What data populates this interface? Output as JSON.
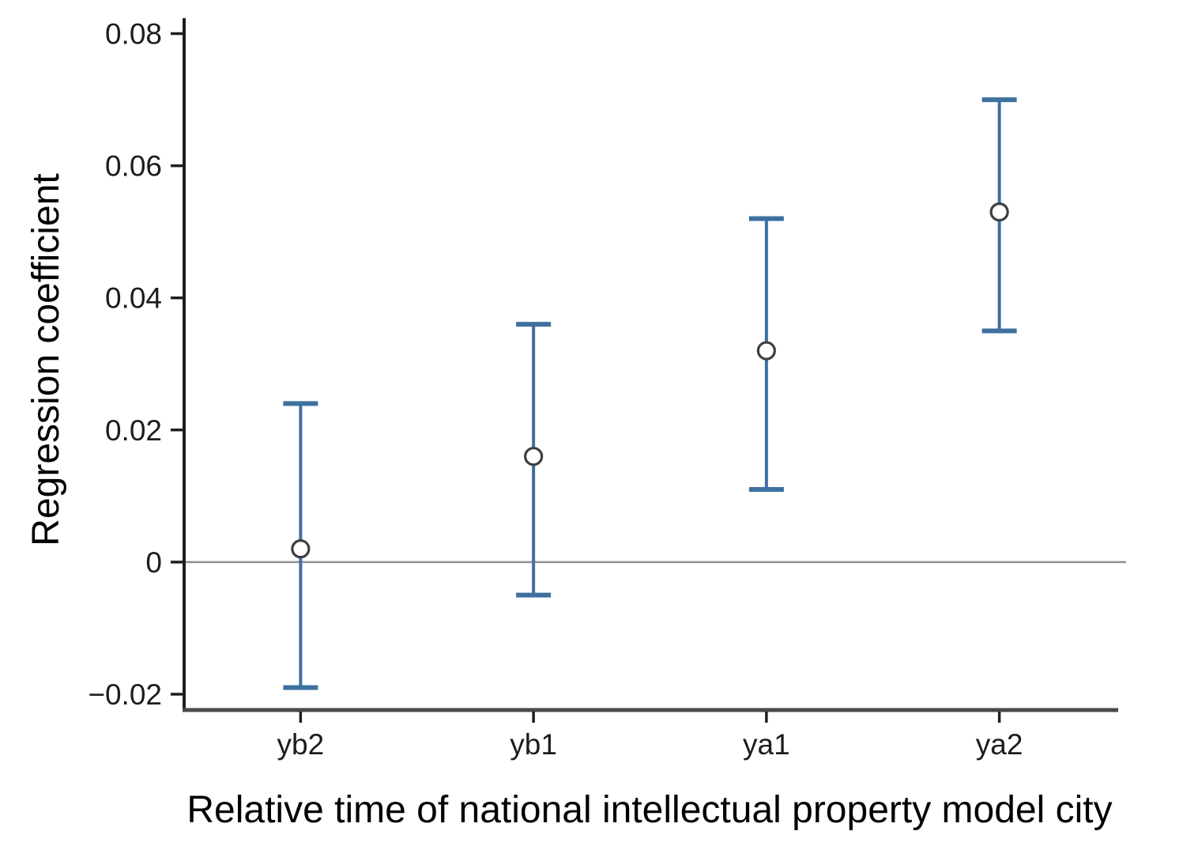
{
  "chart_data": {
    "type": "scatter",
    "subtype": "coefficient-errorbar-plot",
    "title": "",
    "xlabel": "Relative time of national intellectual property model city",
    "ylabel": "Regression coefficient",
    "categories": [
      "yb2",
      "yb1",
      "ya1",
      "ya2"
    ],
    "series": [
      {
        "name": "regression-coefficient",
        "values": [
          0.002,
          0.016,
          0.032,
          0.053
        ],
        "ci_low": [
          -0.019,
          -0.005,
          0.011,
          0.035
        ],
        "ci_high": [
          0.024,
          0.036,
          0.052,
          0.07
        ]
      }
    ],
    "ylim": [
      -0.0224,
      0.0821
    ],
    "yticks": [
      0.08,
      0.06,
      0.04,
      0.02,
      0,
      -0.02
    ],
    "ytick_labels": [
      "0.08",
      "0.06",
      "0.04",
      "0.02",
      "0",
      "−0.02"
    ],
    "reference_line_y": 0,
    "grid": false,
    "legend": null,
    "marker": "open-circle",
    "colors": {
      "errorbar": "#3d70a0",
      "marker_fill": "#ffffff",
      "marker_stroke": "#3f3f3f",
      "y_axis": "#1f1f1f",
      "x_axis": "#4a4a4a",
      "zero_line": "#8f8f8f",
      "text": "#1c1c1c",
      "background": "#ffffff"
    }
  }
}
